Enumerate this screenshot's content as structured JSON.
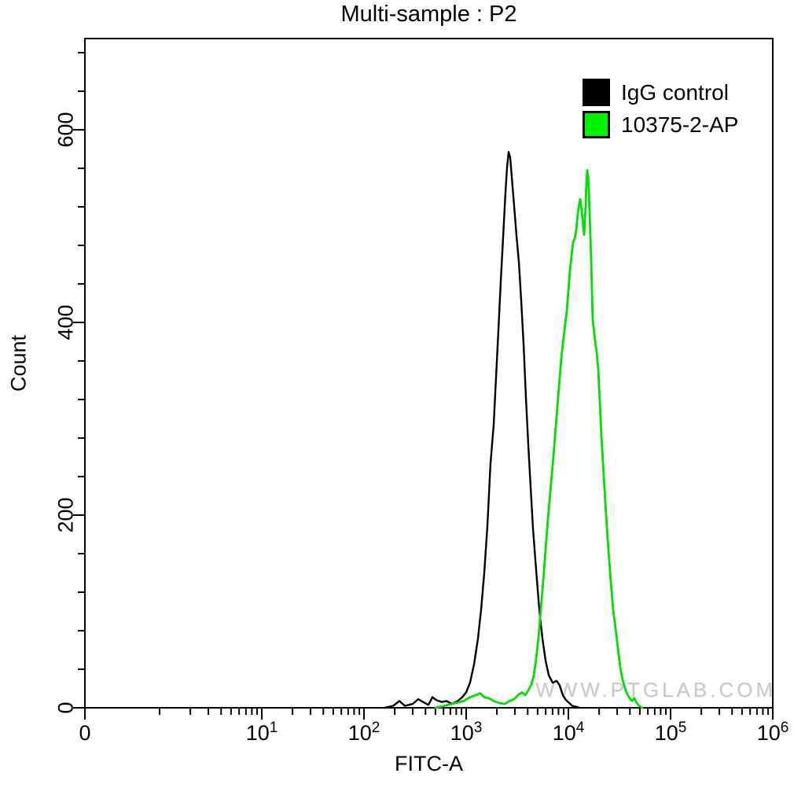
{
  "title": "Multi-sample : P2",
  "watermark": "WWW.PTGLAB.COM",
  "legend": {
    "items": [
      {
        "label": "IgG control",
        "swatch_color": "#000000",
        "swatch_border": false
      },
      {
        "label": "10375-2-AP",
        "swatch_color": "#00f400",
        "swatch_border": true
      }
    ]
  },
  "chart_data": {
    "type": "line",
    "subtype": "flow-cytometry-histogram",
    "title": "Multi-sample : P2",
    "xlabel": "FITC-A",
    "ylabel": "Count",
    "x_scale": "biexponential (0 at origin, log decades 10^1 to 10^6)",
    "grid": "off",
    "legend_position": "top-right-inside",
    "x_axis": {
      "ticks": [
        {
          "label": "0"
        },
        {
          "base": "10",
          "exp": "1"
        },
        {
          "base": "10",
          "exp": "2"
        },
        {
          "base": "10",
          "exp": "3"
        },
        {
          "base": "10",
          "exp": "4"
        },
        {
          "base": "10",
          "exp": "5"
        },
        {
          "base": "10",
          "exp": "6"
        }
      ]
    },
    "y_axis": {
      "ticks": [
        {
          "label": "0",
          "value": 0
        },
        {
          "label": "200",
          "value": 200
        },
        {
          "label": "400",
          "value": 400
        },
        {
          "label": "600",
          "value": 600
        }
      ],
      "minor_step": 40,
      "max": 695
    },
    "series": [
      {
        "name": "IgG control",
        "color": "#000000",
        "stroke_width": 2.4,
        "peak": {
          "fitc_approx": 2600,
          "count": 577
        },
        "points_log10fitc_count": [
          [
            2.2,
            0
          ],
          [
            2.285,
            2
          ],
          [
            2.346,
            7
          ],
          [
            2.4,
            2
          ],
          [
            2.477,
            4
          ],
          [
            2.531,
            9
          ],
          [
            2.577,
            6
          ],
          [
            2.631,
            3
          ],
          [
            2.669,
            11
          ],
          [
            2.708,
            8
          ],
          [
            2.762,
            6
          ],
          [
            2.808,
            7
          ],
          [
            2.862,
            4
          ],
          [
            2.915,
            7
          ],
          [
            2.962,
            11
          ],
          [
            3.0,
            16
          ],
          [
            3.038,
            26
          ],
          [
            3.077,
            45
          ],
          [
            3.115,
            72
          ],
          [
            3.146,
            102
          ],
          [
            3.177,
            140
          ],
          [
            3.208,
            189
          ],
          [
            3.238,
            253
          ],
          [
            3.269,
            294
          ],
          [
            3.292,
            343
          ],
          [
            3.315,
            392
          ],
          [
            3.338,
            441
          ],
          [
            3.362,
            490
          ],
          [
            3.385,
            535
          ],
          [
            3.4,
            561
          ],
          [
            3.415,
            577
          ],
          [
            3.431,
            571
          ],
          [
            3.446,
            551
          ],
          [
            3.469,
            521
          ],
          [
            3.492,
            490
          ],
          [
            3.515,
            463
          ],
          [
            3.538,
            424
          ],
          [
            3.562,
            376
          ],
          [
            3.585,
            322
          ],
          [
            3.608,
            273
          ],
          [
            3.631,
            229
          ],
          [
            3.654,
            186
          ],
          [
            3.685,
            143
          ],
          [
            3.715,
            102
          ],
          [
            3.746,
            72
          ],
          [
            3.777,
            49
          ],
          [
            3.808,
            34
          ],
          [
            3.846,
            26
          ],
          [
            3.885,
            28
          ],
          [
            3.915,
            23
          ],
          [
            3.946,
            13
          ],
          [
            3.977,
            8
          ],
          [
            4.008,
            5
          ],
          [
            4.038,
            2
          ],
          [
            4.077,
            1
          ],
          [
            4.108,
            0
          ]
        ]
      },
      {
        "name": "10375-2-AP",
        "color": "#00e000",
        "stroke_width": 2.8,
        "peak": {
          "fitc_approx": 15300,
          "count": 558
        },
        "points_log10fitc_count": [
          [
            2.7,
            0
          ],
          [
            2.746,
            1
          ],
          [
            2.823,
            3
          ],
          [
            2.9,
            5
          ],
          [
            2.977,
            7
          ],
          [
            3.038,
            11
          ],
          [
            3.092,
            13
          ],
          [
            3.138,
            15
          ],
          [
            3.177,
            11
          ],
          [
            3.223,
            10
          ],
          [
            3.269,
            7
          ],
          [
            3.323,
            5
          ],
          [
            3.377,
            4
          ],
          [
            3.423,
            7
          ],
          [
            3.469,
            9
          ],
          [
            3.515,
            14
          ],
          [
            3.546,
            16
          ],
          [
            3.577,
            13
          ],
          [
            3.608,
            18
          ],
          [
            3.638,
            24
          ],
          [
            3.662,
            34
          ],
          [
            3.685,
            51
          ],
          [
            3.708,
            73
          ],
          [
            3.731,
            102
          ],
          [
            3.762,
            143
          ],
          [
            3.792,
            186
          ],
          [
            3.823,
            224
          ],
          [
            3.854,
            261
          ],
          [
            3.885,
            302
          ],
          [
            3.915,
            343
          ],
          [
            3.931,
            363
          ],
          [
            3.962,
            392
          ],
          [
            3.985,
            412
          ],
          [
            4.0,
            433
          ],
          [
            4.015,
            453
          ],
          [
            4.031,
            469
          ],
          [
            4.046,
            483
          ],
          [
            4.062,
            487
          ],
          [
            4.077,
            496
          ],
          [
            4.092,
            513
          ],
          [
            4.108,
            524
          ],
          [
            4.115,
            528
          ],
          [
            4.131,
            516
          ],
          [
            4.146,
            498
          ],
          [
            4.154,
            491
          ],
          [
            4.169,
            521
          ],
          [
            4.177,
            547
          ],
          [
            4.185,
            558
          ],
          [
            4.192,
            553
          ],
          [
            4.2,
            539
          ],
          [
            4.208,
            514
          ],
          [
            4.215,
            490
          ],
          [
            4.223,
            465
          ],
          [
            4.231,
            433
          ],
          [
            4.238,
            404
          ],
          [
            4.254,
            388
          ],
          [
            4.262,
            380
          ],
          [
            4.277,
            369
          ],
          [
            4.292,
            351
          ],
          [
            4.308,
            318
          ],
          [
            4.323,
            282
          ],
          [
            4.346,
            241
          ],
          [
            4.369,
            200
          ],
          [
            4.392,
            163
          ],
          [
            4.415,
            131
          ],
          [
            4.438,
            102
          ],
          [
            4.462,
            82
          ],
          [
            4.485,
            61
          ],
          [
            4.508,
            42
          ],
          [
            4.531,
            29
          ],
          [
            4.554,
            20
          ],
          [
            4.577,
            14
          ],
          [
            4.6,
            10
          ],
          [
            4.623,
            7
          ],
          [
            4.646,
            10
          ],
          [
            4.669,
            5
          ],
          [
            4.692,
            2
          ],
          [
            4.723,
            0
          ]
        ]
      }
    ]
  }
}
